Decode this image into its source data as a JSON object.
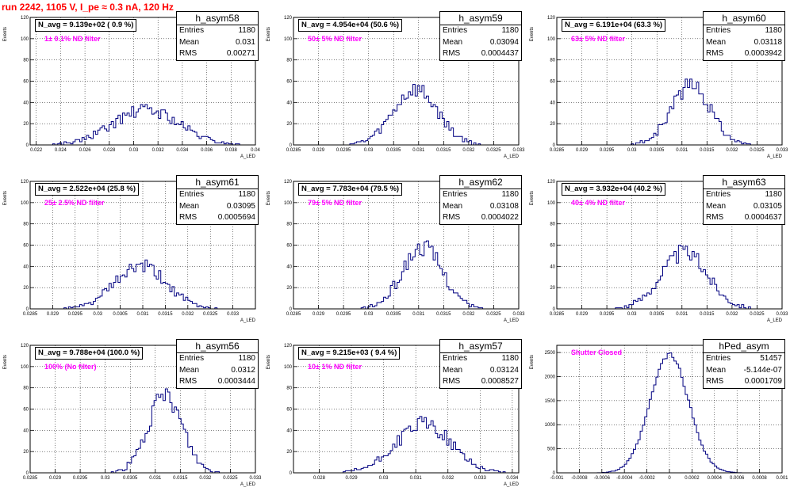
{
  "run_title": "run 2242,  1105 V, I_pe ≈ 0.3 nA, 120 Hz",
  "colors": {
    "hist": "#000080",
    "title": "#ff0000",
    "filter_text": "#ff00ff"
  },
  "chart_data": [
    {
      "type": "histogram",
      "name": "h_asym58",
      "entries": "1180",
      "mean": "0.031",
      "rms": "0.00271",
      "navg": "N_avg = 9.139e+02 ( 0.9 %)",
      "filter": "1± 0.1% ND filter",
      "ylabel": "Events",
      "xlabel": "A_LED",
      "xlim": [
        0.0215,
        0.04
      ],
      "ylim": [
        0,
        120
      ],
      "xticks": [
        "0.022",
        "0.024",
        "0.026",
        "0.028",
        "0.03",
        "0.032",
        "0.034",
        "0.036",
        "0.038",
        "0.04"
      ],
      "xtick_vals": [
        0.022,
        0.024,
        0.026,
        0.028,
        0.03,
        0.032,
        0.034,
        0.036,
        0.038,
        0.04
      ],
      "yticks": [
        "0",
        "20",
        "40",
        "60",
        "80",
        "100",
        "120"
      ],
      "ytick_vals": [
        0,
        20,
        40,
        60,
        80,
        100,
        120
      ],
      "mu": 0.031,
      "sigma": 0.00271,
      "peak": 33,
      "seed": 58
    },
    {
      "type": "histogram",
      "name": "h_asym59",
      "entries": "1180",
      "mean": "0.03094",
      "rms": "0.0004437",
      "navg": "N_avg = 4.954e+04 (50.6 %)",
      "filter": "50± 5% ND filter",
      "ylabel": "Events",
      "xlabel": "A_LED",
      "xlim": [
        0.0285,
        0.033
      ],
      "ylim": [
        0,
        120
      ],
      "xticks": [
        "0.0285",
        "0.029",
        "0.0295",
        "0.03",
        "0.0305",
        "0.031",
        "0.0315",
        "0.032",
        "0.0325",
        "0.033"
      ],
      "xtick_vals": [
        0.0285,
        0.029,
        0.0295,
        0.03,
        0.0305,
        0.031,
        0.0315,
        0.032,
        0.0325,
        0.033
      ],
      "yticks": [
        "0",
        "20",
        "40",
        "60",
        "80",
        "100",
        "120"
      ],
      "ytick_vals": [
        0,
        20,
        40,
        60,
        80,
        100,
        120
      ],
      "mu": 0.03094,
      "sigma": 0.0004437,
      "peak": 52,
      "seed": 59
    },
    {
      "type": "histogram",
      "name": "h_asym60",
      "entries": "1180",
      "mean": "0.03118",
      "rms": "0.0003942",
      "navg": "N_avg = 6.191e+04 (63.3 %)",
      "filter": "63± 5% ND filter",
      "ylabel": "Events",
      "xlabel": "A_LED",
      "xlim": [
        0.0285,
        0.033
      ],
      "ylim": [
        0,
        120
      ],
      "xticks": [
        "0.0285",
        "0.029",
        "0.0295",
        "0.03",
        "0.0305",
        "0.031",
        "0.0315",
        "0.032",
        "0.0325",
        "0.033"
      ],
      "xtick_vals": [
        0.0285,
        0.029,
        0.0295,
        0.03,
        0.0305,
        0.031,
        0.0315,
        0.032,
        0.0325,
        0.033
      ],
      "yticks": [
        "0",
        "20",
        "40",
        "60",
        "80",
        "100",
        "120"
      ],
      "ytick_vals": [
        0,
        20,
        40,
        60,
        80,
        100,
        120
      ],
      "mu": 0.03118,
      "sigma": 0.0003942,
      "peak": 56,
      "seed": 60
    },
    {
      "type": "histogram",
      "name": "h_asym61",
      "entries": "1180",
      "mean": "0.03095",
      "rms": "0.0005694",
      "navg": "N_avg = 2.522e+04 (25.8 %)",
      "filter": "25± 2.5% ND filter",
      "ylabel": "Events",
      "xlabel": "A_LED",
      "xlim": [
        0.0285,
        0.0335
      ],
      "ylim": [
        0,
        120
      ],
      "xticks": [
        "0.0285",
        "0.029",
        "0.0295",
        "0.03",
        "0.0305",
        "0.031",
        "0.0315",
        "0.032",
        "0.0325",
        "0.033"
      ],
      "xtick_vals": [
        0.0285,
        0.029,
        0.0295,
        0.03,
        0.0305,
        0.031,
        0.0315,
        0.032,
        0.0325,
        0.033
      ],
      "yticks": [
        "0",
        "20",
        "40",
        "60",
        "80",
        "100",
        "120"
      ],
      "ytick_vals": [
        0,
        20,
        40,
        60,
        80,
        100,
        120
      ],
      "mu": 0.03095,
      "sigma": 0.0005694,
      "peak": 40,
      "seed": 61
    },
    {
      "type": "histogram",
      "name": "h_asym62",
      "entries": "1180",
      "mean": "0.03108",
      "rms": "0.0004022",
      "navg": "N_avg = 7.783e+04 (79.5 %)",
      "filter": "79± 5% ND filter",
      "ylabel": "Events",
      "xlabel": "A_LED",
      "xlim": [
        0.0285,
        0.033
      ],
      "ylim": [
        0,
        120
      ],
      "xticks": [
        "0.0285",
        "0.029",
        "0.0295",
        "0.03",
        "0.0305",
        "0.031",
        "0.0315",
        "0.032",
        "0.0325",
        "0.033"
      ],
      "xtick_vals": [
        0.0285,
        0.029,
        0.0295,
        0.03,
        0.0305,
        0.031,
        0.0315,
        0.032,
        0.0325,
        0.033
      ],
      "yticks": [
        "0",
        "20",
        "40",
        "60",
        "80",
        "100",
        "120"
      ],
      "ytick_vals": [
        0,
        20,
        40,
        60,
        80,
        100,
        120
      ],
      "mu": 0.03108,
      "sigma": 0.0004022,
      "peak": 58,
      "seed": 62
    },
    {
      "type": "histogram",
      "name": "h_asym63",
      "entries": "1180",
      "mean": "0.03105",
      "rms": "0.0004637",
      "navg": "N_avg = 3.932e+04 (40.2 %)",
      "filter": "40± 4% ND filter",
      "ylabel": "Events",
      "xlabel": "A_LED",
      "xlim": [
        0.0285,
        0.033
      ],
      "ylim": [
        0,
        120
      ],
      "xticks": [
        "0.0285",
        "0.029",
        "0.0295",
        "0.03",
        "0.0305",
        "0.031",
        "0.0315",
        "0.032",
        "0.0325",
        "0.033"
      ],
      "xtick_vals": [
        0.0285,
        0.029,
        0.0295,
        0.03,
        0.0305,
        0.031,
        0.0315,
        0.032,
        0.0325,
        0.033
      ],
      "yticks": [
        "0",
        "20",
        "40",
        "60",
        "80",
        "100",
        "120"
      ],
      "ytick_vals": [
        0,
        20,
        40,
        60,
        80,
        100,
        120
      ],
      "mu": 0.03105,
      "sigma": 0.0004637,
      "peak": 53,
      "seed": 63
    },
    {
      "type": "histogram",
      "name": "h_asym56",
      "entries": "1180",
      "mean": "0.0312",
      "rms": "0.0003444",
      "navg": "N_avg = 9.788e+04 (100.0 %)",
      "filter": "100% (No filter)",
      "ylabel": "Events",
      "xlabel": "A_LED",
      "xlim": [
        0.0285,
        0.033
      ],
      "ylim": [
        0,
        120
      ],
      "xticks": [
        "0.0285",
        "0.029",
        "0.0295",
        "0.03",
        "0.0305",
        "0.031",
        "0.0315",
        "0.032",
        "0.0325",
        "0.033"
      ],
      "xtick_vals": [
        0.0285,
        0.029,
        0.0295,
        0.03,
        0.0305,
        0.031,
        0.0315,
        0.032,
        0.0325,
        0.033
      ],
      "yticks": [
        "0",
        "20",
        "40",
        "60",
        "80",
        "100",
        "120"
      ],
      "ytick_vals": [
        0,
        20,
        40,
        60,
        80,
        100,
        120
      ],
      "mu": 0.0312,
      "sigma": 0.0003444,
      "peak": 72,
      "seed": 56
    },
    {
      "type": "histogram",
      "name": "h_asym57",
      "entries": "1180",
      "mean": "0.03124",
      "rms": "0.0008527",
      "navg": "N_avg = 9.215e+03 ( 9.4 %)",
      "filter": "10± 1% ND filter",
      "ylabel": "Events",
      "xlabel": "A_LED",
      "xlim": [
        0.0272,
        0.0342
      ],
      "ylim": [
        0,
        120
      ],
      "xticks": [
        "0.028",
        "0.029",
        "0.03",
        "0.031",
        "0.032",
        "0.033",
        "0.034"
      ],
      "xtick_vals": [
        0.028,
        0.029,
        0.03,
        0.031,
        0.032,
        0.033,
        0.034
      ],
      "yticks": [
        "0",
        "20",
        "40",
        "60",
        "80",
        "100",
        "120"
      ],
      "ytick_vals": [
        0,
        20,
        40,
        60,
        80,
        100,
        120
      ],
      "mu": 0.03124,
      "sigma": 0.0008527,
      "peak": 46,
      "seed": 57
    },
    {
      "type": "histogram",
      "name": "hPed_asym",
      "entries": "51457",
      "mean": "-5.144e-07",
      "rms": "0.0001709",
      "navg": "",
      "filter": "Shutter Closed",
      "ylabel": "Events",
      "xlabel": "",
      "xlim": [
        -0.001,
        0.001
      ],
      "ylim": [
        0,
        2650
      ],
      "xticks": [
        "-0.001",
        "-0.0008",
        "-0.0006",
        "-0.0004",
        "-0.0002",
        "0",
        "0.0002",
        "0.0004",
        "0.0006",
        "0.0008",
        "0.001"
      ],
      "xtick_vals": [
        -0.001,
        -0.0008,
        -0.0006,
        -0.0004,
        -0.0002,
        0,
        0.0002,
        0.0004,
        0.0006,
        0.0008,
        0.001
      ],
      "yticks": [
        "0",
        "500",
        "1000",
        "1500",
        "2000",
        "2500"
      ],
      "ytick_vals": [
        0,
        500,
        1000,
        1500,
        2000,
        2500
      ],
      "mu": 0.0,
      "sigma": 0.0001709,
      "peak": 2450,
      "seed": 99
    }
  ],
  "labels": {
    "entries": "Entries",
    "mean": "Mean",
    "rms": "RMS"
  }
}
